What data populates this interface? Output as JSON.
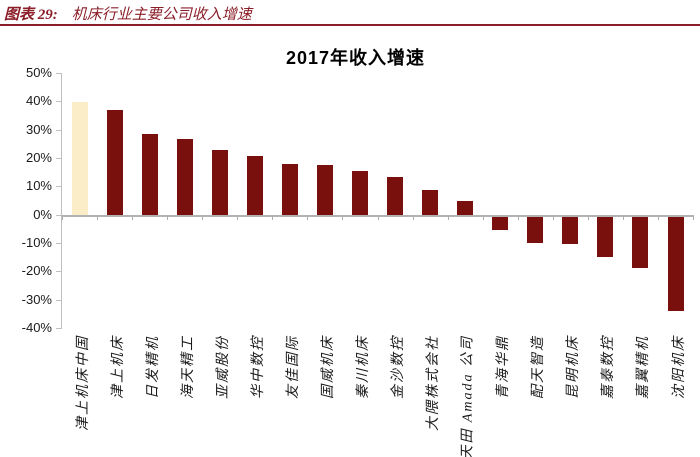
{
  "figure_header": {
    "label": "图表 29:",
    "title": "机床行业主要公司收入增速",
    "accent_color": "#8B1E28"
  },
  "chart_data": {
    "type": "bar",
    "title": "2017年收入增速",
    "categories": [
      "津上机床中国",
      "津上机床",
      "日发精机",
      "海天精工",
      "亚威股份",
      "华中数控",
      "友佳国际",
      "国威机床",
      "秦川机床",
      "金沙数控",
      "大隈株式会社",
      "天田 Amada 公司",
      "青海华鼎",
      "配天智造",
      "昆明机床",
      "嘉泰数控",
      "嘉翼精机",
      "沈阳机床"
    ],
    "values": [
      40,
      37,
      28.5,
      27,
      23,
      21,
      18,
      17.5,
      15.5,
      13.5,
      9,
      5,
      -4.5,
      -9,
      -9.5,
      -14,
      -18,
      -33
    ],
    "unit": "%",
    "ylim": [
      -40,
      50
    ],
    "ytick_step": 10,
    "ytick_labels": [
      "50%",
      "40%",
      "30%",
      "20%",
      "10%",
      "0%",
      "-10%",
      "-20%",
      "-30%",
      "-40%"
    ],
    "bar_color": "#7A100E",
    "highlight_index": 0,
    "highlight_color": "#FBEDC8",
    "axis_color": "#BFBFBF",
    "grid": false,
    "legend_position": "none",
    "xlabel": "",
    "ylabel": ""
  }
}
